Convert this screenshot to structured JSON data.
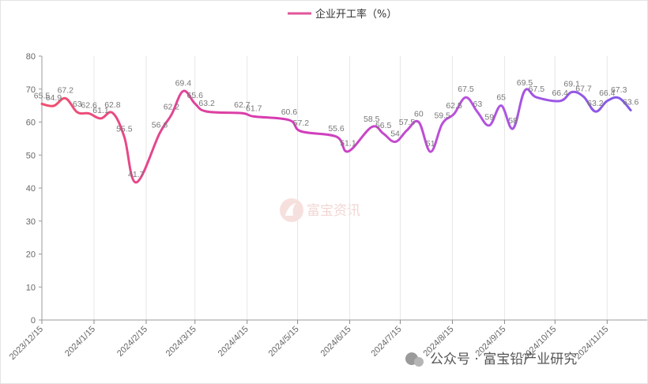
{
  "chart_data": {
    "type": "line",
    "title": "",
    "legend": {
      "label": "企业开工率（%）",
      "position": "top-center"
    },
    "ylim": [
      0,
      80
    ],
    "y_ticks": [
      0,
      10,
      20,
      30,
      40,
      50,
      60,
      70,
      80
    ],
    "x_tick_labels": [
      "2023/12/15",
      "2024/1/15",
      "2024/2/15",
      "2024/3/15",
      "2024/4/15",
      "2024/5/15",
      "2024/6/15",
      "2024/7/15",
      "2024/8/15",
      "2024/9/15",
      "2024/10/15",
      "2024/11/15"
    ],
    "grid": {
      "vertical": true,
      "horizontal": false
    },
    "gradient_colors": [
      "#f0506e",
      "#d63bb5",
      "#b653e0",
      "#7d5ae8"
    ],
    "series": [
      {
        "name": "企业开工率（%）",
        "x": [
          "2023-12-15",
          "2023-12-22",
          "2023-12-29",
          "2024-01-05",
          "2024-01-12",
          "2024-01-19",
          "2024-01-26",
          "2024-02-02",
          "2024-02-09",
          "2024-02-23",
          "2024-03-01",
          "2024-03-08",
          "2024-03-15",
          "2024-03-22",
          "2024-04-12",
          "2024-04-19",
          "2024-05-10",
          "2024-05-17",
          "2024-06-07",
          "2024-06-14",
          "2024-06-28",
          "2024-07-05",
          "2024-07-12",
          "2024-07-19",
          "2024-07-26",
          "2024-08-02",
          "2024-08-09",
          "2024-08-16",
          "2024-08-23",
          "2024-08-30",
          "2024-09-06",
          "2024-09-13",
          "2024-09-20",
          "2024-09-27",
          "2024-10-04",
          "2024-10-18",
          "2024-10-25",
          "2024-11-01",
          "2024-11-08",
          "2024-11-15",
          "2024-11-22",
          "2024-11-29"
        ],
        "values": [
          65.5,
          64.9,
          67.2,
          63,
          62.6,
          61.1,
          62.8,
          55.5,
          41.7,
          56.6,
          62.2,
          69.4,
          65.6,
          63.2,
          62.7,
          61.7,
          60.6,
          57.2,
          55.6,
          51.1,
          58.5,
          56.5,
          54,
          57.5,
          60,
          51,
          59.5,
          62.5,
          67.5,
          63,
          59,
          65,
          58,
          69.5,
          67.5,
          66.4,
          69.1,
          67.7,
          63.2,
          66.4,
          67.3,
          63.6
        ]
      }
    ]
  },
  "watermark": {
    "text": "富宝资讯"
  },
  "footer": {
    "text": "公众号 · 富宝铅产业研究"
  }
}
